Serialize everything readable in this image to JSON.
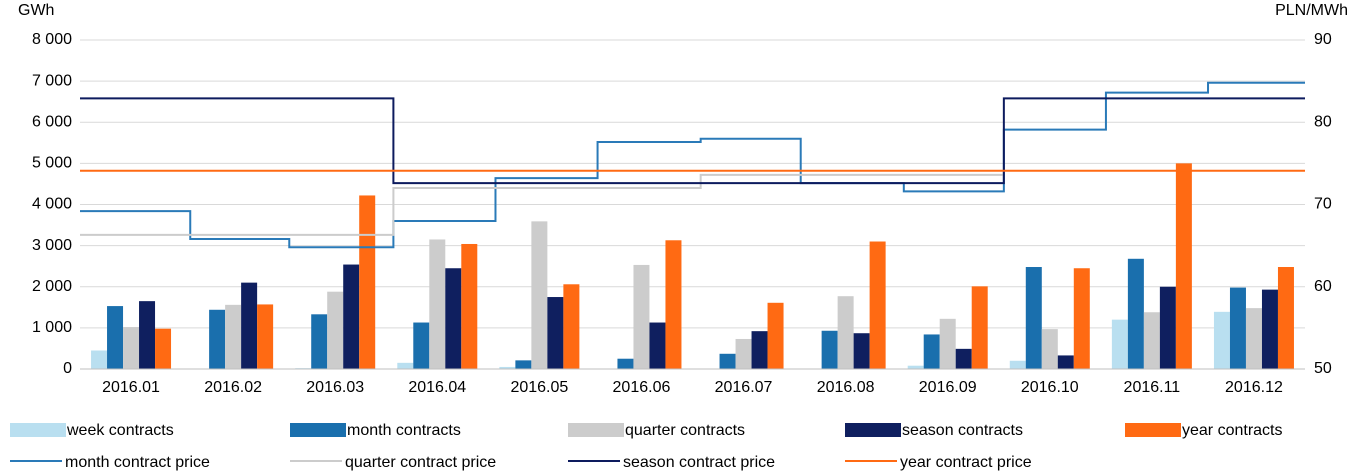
{
  "chart_data": {
    "type": "bar",
    "y_label": "GWh",
    "y2_label": "PLN/MWh",
    "categories": [
      "2016.01",
      "2016.02",
      "2016.03",
      "2016.04",
      "2016.05",
      "2016.06",
      "2016.07",
      "2016.08",
      "2016.09",
      "2016.10",
      "2016.11",
      "2016.12"
    ],
    "ylim": [
      0,
      8000
    ],
    "yticks": [
      0,
      {
        "value": 1000,
        "label": "1 000"
      },
      {
        "value": 2000,
        "label": "2 000"
      },
      {
        "value": 3000,
        "label": "3 000"
      },
      {
        "value": 4000,
        "label": "4 000"
      },
      {
        "value": 5000,
        "label": "5 000"
      },
      {
        "value": 6000,
        "label": "6 000"
      },
      {
        "value": 7000,
        "label": "7 000"
      },
      {
        "value": 8000,
        "label": "8 000"
      }
    ],
    "y2lim": [
      50,
      90
    ],
    "y2ticks": [
      50,
      60,
      70,
      80,
      90
    ],
    "grid": true,
    "legend": "bottom",
    "series": [
      {
        "name": "week contracts",
        "type": "bar",
        "color": "#b9dff0",
        "values": [
          450,
          0,
          20,
          150,
          50,
          0,
          0,
          0,
          80,
          200,
          1200,
          1390
        ]
      },
      {
        "name": "month contracts",
        "type": "bar",
        "color": "#1a6fad",
        "values": [
          1530,
          1440,
          1330,
          1130,
          210,
          250,
          370,
          930,
          840,
          2480,
          2680,
          1980
        ]
      },
      {
        "name": "quarter contracts",
        "type": "bar",
        "color": "#cccccc",
        "values": [
          1020,
          1560,
          1880,
          3150,
          3590,
          2530,
          730,
          1770,
          1220,
          970,
          1380,
          1480
        ]
      },
      {
        "name": "season contracts",
        "type": "bar",
        "color": "#0f1f5f",
        "values": [
          1650,
          2100,
          2540,
          2450,
          1750,
          1130,
          920,
          870,
          490,
          330,
          2000,
          1930
        ]
      },
      {
        "name": "year contracts",
        "type": "bar",
        "color": "#ff6a13",
        "values": [
          980,
          1570,
          4220,
          3040,
          2060,
          3130,
          1610,
          3100,
          2010,
          2450,
          5000,
          2480
        ]
      },
      {
        "name": "month contract price",
        "type": "line",
        "axis": "y2",
        "color": "#2a7ab8",
        "x": [
          0,
          1.08,
          1.08,
          2.05,
          2.05,
          3.07,
          3.07,
          4.07,
          4.07,
          5.07,
          5.07,
          6.08,
          6.08,
          7.06,
          7.06,
          8.07,
          8.07,
          9.05,
          9.05,
          10.05,
          10.05,
          11.05,
          11.05,
          12
        ],
        "values": [
          69.2,
          69.2,
          65.8,
          65.8,
          64.8,
          64.8,
          68.0,
          68.0,
          73.2,
          73.2,
          77.6,
          77.6,
          78.0,
          78.0,
          72.6,
          72.6,
          71.6,
          71.6,
          79.1,
          79.1,
          83.6,
          83.6,
          84.8,
          84.8
        ]
      },
      {
        "name": "quarter contract price",
        "type": "line",
        "axis": "y2",
        "color": "#cccccc",
        "x": [
          0,
          3.07,
          3.07,
          6.08,
          6.08,
          9.05
        ],
        "values": [
          66.3,
          66.3,
          72.0,
          72.0,
          73.6,
          73.6
        ]
      },
      {
        "name": "season contract price",
        "type": "line",
        "axis": "y2",
        "color": "#0d1b5e",
        "x": [
          0,
          3.07,
          3.07,
          9.05,
          9.05,
          12
        ],
        "values": [
          82.9,
          82.9,
          72.6,
          72.6,
          82.9,
          82.9
        ]
      },
      {
        "name": "year contract price",
        "type": "line",
        "axis": "y2",
        "color": "#ff6a13",
        "x": [
          0,
          12
        ],
        "values": [
          74.1,
          74.1
        ]
      }
    ]
  }
}
